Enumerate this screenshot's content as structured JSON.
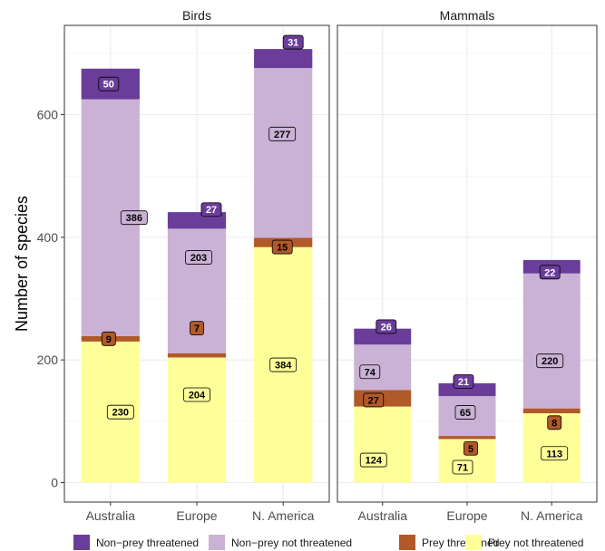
{
  "chart_data": {
    "type": "bar",
    "stacked": true,
    "facets": [
      "Birds",
      "Mammals"
    ],
    "categories": [
      "Australia",
      "Europe",
      "N. America"
    ],
    "ylabel": "Number  of species",
    "xlabel": "",
    "ylim": [
      0,
      740
    ],
    "yticks": [
      0,
      200,
      400,
      600
    ],
    "grid": true,
    "legend_position": "bottom",
    "series": [
      {
        "name": "Prey not threatened",
        "color": "#ffff99",
        "text_color": "#000000",
        "values": {
          "Birds": [
            230,
            204,
            384
          ],
          "Mammals": [
            124,
            71,
            113
          ]
        }
      },
      {
        "name": "Prey threatened",
        "color": "#b15928",
        "text_color": "#000000",
        "values": {
          "Birds": [
            9,
            7,
            15
          ],
          "Mammals": [
            27,
            5,
            8
          ]
        }
      },
      {
        "name": "Non−prey not threatened",
        "color": "#cab2d6",
        "text_color": "#000000",
        "values": {
          "Birds": [
            386,
            203,
            277
          ],
          "Mammals": [
            74,
            65,
            220
          ]
        }
      },
      {
        "name": "Non−prey threatened",
        "color": "#6a3d9a",
        "text_color": "#ffffff",
        "values": {
          "Birds": [
            50,
            27,
            31
          ],
          "Mammals": [
            26,
            21,
            22
          ]
        }
      }
    ],
    "legend_order": [
      3,
      2,
      1,
      0
    ]
  }
}
